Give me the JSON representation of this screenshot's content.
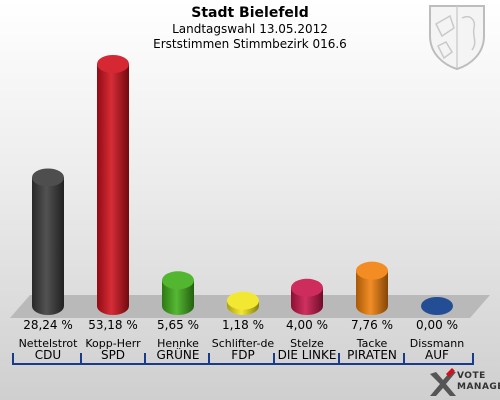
{
  "header": {
    "title": "Stadt Bielefeld",
    "subtitle": "Landtagswahl 13.05.2012",
    "district": "Erststimmen Stimmbezirk 016.6"
  },
  "logo": {
    "line1": "VOTE",
    "line2": "MANAGER",
    "icon": "vote-manager-x-icon"
  },
  "crest": {
    "icon": "coat-of-arms-icon"
  },
  "chart_data": {
    "type": "bar",
    "categories": [
      "CDU",
      "SPD",
      "GRÜNE",
      "FDP",
      "DIE LINKE",
      "PIRATEN",
      "AUF"
    ],
    "candidates": [
      "Nettelstrot",
      "Kopp-Herr",
      "Hennke",
      "Schlifter-de",
      "Stelze",
      "Tacke",
      "Dissmann"
    ],
    "values": [
      28.24,
      53.18,
      5.65,
      1.18,
      4.0,
      7.76,
      0.0
    ],
    "value_labels": [
      "28,24 %",
      "53,18 %",
      "5,65 %",
      "1,18 %",
      "4,00 %",
      "7,76 %",
      "0,00 %"
    ],
    "colors": [
      "#3a3a3a",
      "#d0101c",
      "#3fae1a",
      "#f2e51a",
      "#c8154a",
      "#f07f0a",
      "#0a3a8a"
    ],
    "title": "Stadt Bielefeld",
    "ylim": [
      0,
      53.18
    ],
    "grid": false,
    "legend": "none"
  }
}
